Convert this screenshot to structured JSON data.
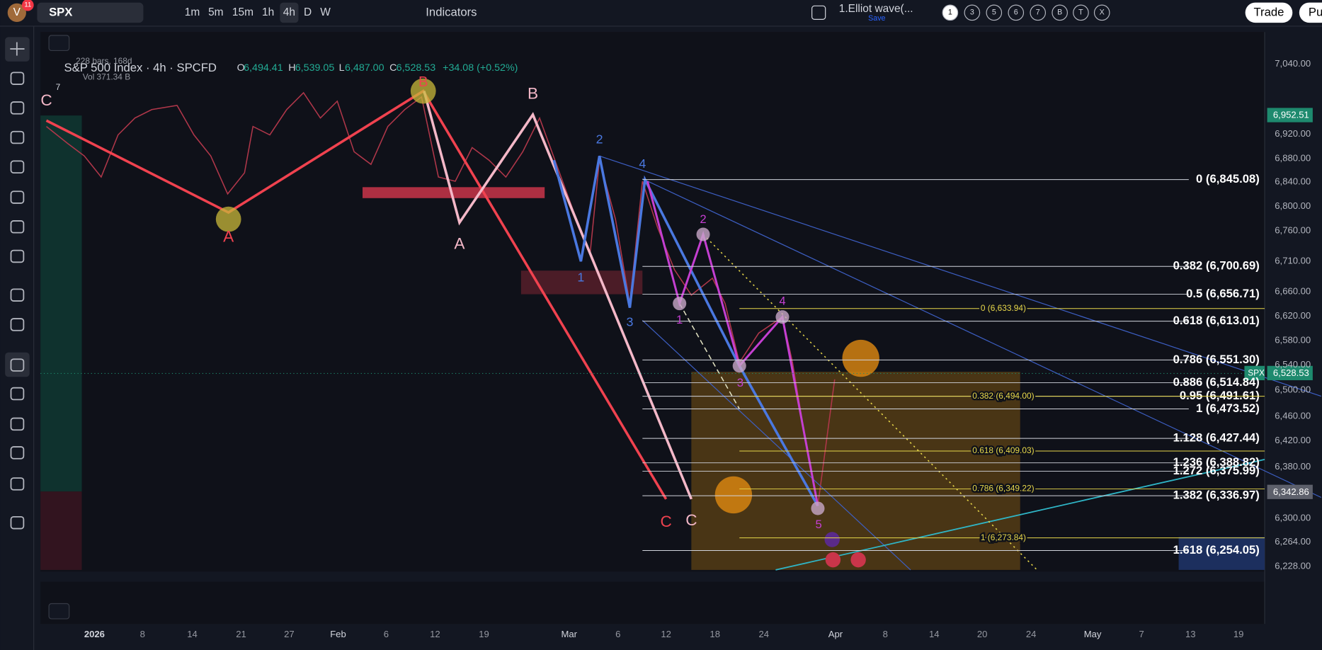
{
  "toolbar": {
    "avatar": "V",
    "badge": "11",
    "symbol": "SPX",
    "intervals": [
      "1m",
      "5m",
      "15m",
      "1h",
      "4h",
      "D",
      "W"
    ],
    "indicators": "Indicators",
    "layout_name": "1.Elliot wave(...",
    "save": "Save",
    "wave_degrees": [
      "1",
      "3",
      "5",
      "6",
      "7",
      "B",
      "T",
      "X"
    ],
    "trade": "Trade",
    "publish": "Pu"
  },
  "legend": {
    "title": "S&P 500 Index · 4h · SPCFD",
    "o_label": "O",
    "o": "6,494.41",
    "h_label": "H",
    "h": "6,539.05",
    "l_label": "L",
    "l": "6,487.00",
    "c_label": "C",
    "c": "6,528.53",
    "change": "+34.08 (+0.52%)",
    "bars": "228 bars, 168d",
    "vol": "Vol 371.34 B",
    "collapse": "7"
  },
  "price_axis": [
    "7,040.00",
    "6,920.00",
    "6,880.00",
    "6,840.00",
    "6,800.00",
    "6,760.00",
    "6,710.00",
    "6,660.00",
    "6,620.00",
    "6,580.00",
    "6,540.00",
    "6,500.00",
    "6,460.00",
    "6,420.00",
    "6,380.00",
    "6,300.00",
    "6,264.00",
    "6,228.00"
  ],
  "price_marks": {
    "high": "6,952.51",
    "current_symbol": "SPX",
    "current": "6,528.53",
    "low": "6,342.86"
  },
  "time_axis": [
    "2026",
    "8",
    "14",
    "21",
    "27",
    "Feb",
    "6",
    "12",
    "19",
    "Mar",
    "6",
    "12",
    "18",
    "24",
    "Apr",
    "8",
    "14",
    "20",
    "24",
    "May",
    "7",
    "13",
    "19"
  ],
  "fib_white": [
    "0 (6,845.08)",
    "0.382 (6,700.69)",
    "0.5 (6,656.71)",
    "0.618 (6,613.01)",
    "0.786 (6,551.30)",
    "0.886 (6,514.84)",
    "0.95 (6,491.61)",
    "1 (6,473.52)",
    "1.128 (6,427.44)",
    "1.236 (6,388.82)",
    "1.272 (6,375.99)",
    "1.382 (6,336.97)",
    "1.618 (6,254.05)"
  ],
  "fib_yellow": [
    "0 (6,633.94)",
    "0.382 (6,494.00)",
    "0.618 (6,409.03)",
    "0.786 (6,349.22)",
    "1 (6,273.84)"
  ],
  "wave_labels": {
    "red": [
      "A",
      "C"
    ],
    "pink": [
      "C",
      "B",
      "A",
      "C"
    ],
    "top": [
      "B"
    ],
    "blue": [
      "1",
      "2",
      "3",
      "4"
    ],
    "purple": [
      "1",
      "2",
      "3",
      "4",
      "5"
    ]
  }
}
